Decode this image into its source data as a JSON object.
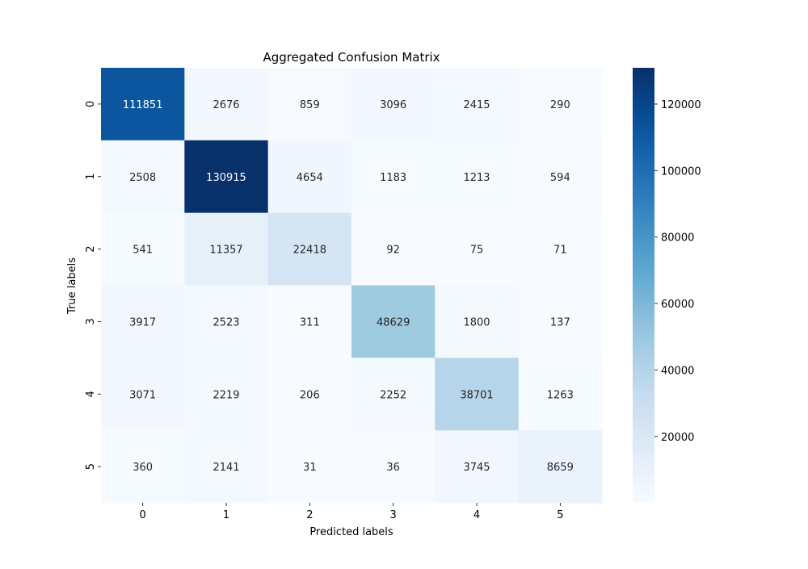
{
  "chart_data": {
    "type": "heatmap",
    "title": "Aggregated Confusion Matrix",
    "xlabel": "Predicted labels",
    "ylabel": "True labels",
    "x_categories": [
      "0",
      "1",
      "2",
      "3",
      "4",
      "5"
    ],
    "y_categories": [
      "0",
      "1",
      "2",
      "3",
      "4",
      "5"
    ],
    "values": [
      [
        111851,
        2676,
        859,
        3096,
        2415,
        290
      ],
      [
        2508,
        130915,
        4654,
        1183,
        1213,
        594
      ],
      [
        541,
        11357,
        22418,
        92,
        75,
        71
      ],
      [
        3917,
        2523,
        311,
        48629,
        1800,
        137
      ],
      [
        3071,
        2219,
        206,
        2252,
        38701,
        1263
      ],
      [
        360,
        2141,
        31,
        36,
        3745,
        8659
      ]
    ],
    "colormap": "Blues",
    "color_range": [
      31,
      130915
    ],
    "colorbar_ticks": [
      "20000",
      "40000",
      "60000",
      "80000",
      "100000",
      "120000"
    ],
    "colorbar_tick_values": [
      20000,
      40000,
      60000,
      80000,
      100000,
      120000
    ],
    "annotated": true
  }
}
